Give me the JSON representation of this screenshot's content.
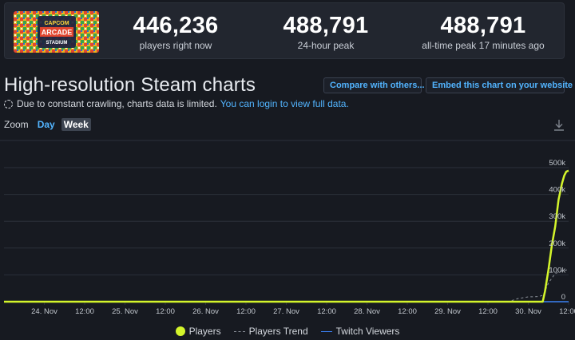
{
  "header": {
    "logo_text": "CAPCOM ARCADE STADIUM",
    "stats": [
      {
        "value": "446,236",
        "label": "players right now"
      },
      {
        "value": "488,791",
        "label": "24-hour peak"
      },
      {
        "value": "488,791",
        "label": "all-time peak 17 minutes ago"
      }
    ]
  },
  "title": "High-resolution Steam charts",
  "buttons": {
    "compare": "Compare with others...",
    "embed": "Embed this chart on your website"
  },
  "notice": {
    "text": "Due to constant crawling, charts data is limited.",
    "link": "You can login to view full data."
  },
  "zoom": {
    "label": "Zoom",
    "options": [
      "Day",
      "Week"
    ],
    "selected": "Week"
  },
  "colors": {
    "players": "#d4f52b",
    "trend": "#8a9099",
    "twitch": "#3b82f6",
    "grid": "#2b303a",
    "axis_text": "#c3c8cf"
  },
  "chart_data": {
    "type": "line",
    "x_ticks": [
      "24. Nov",
      "12:00",
      "25. Nov",
      "12:00",
      "26. Nov",
      "12:00",
      "27. Nov",
      "12:00",
      "28. Nov",
      "12:00",
      "29. Nov",
      "12:00",
      "30. Nov",
      "12:00"
    ],
    "y_ticks": [
      "0",
      "100k",
      "200k",
      "300k",
      "400k",
      "500k"
    ],
    "ylim": [
      0,
      500000
    ],
    "x_range_hours": [
      -12,
      156
    ],
    "series": [
      {
        "name": "Players",
        "points": [
          [
            -12,
            0
          ],
          [
            148.3,
            0
          ],
          [
            149,
            40000
          ],
          [
            150,
            120000
          ],
          [
            151,
            210000
          ],
          [
            152,
            280000
          ],
          [
            153,
            380000
          ],
          [
            154,
            440000
          ],
          [
            154.7,
            470000
          ],
          [
            155.3,
            485000
          ],
          [
            156,
            488791
          ]
        ]
      },
      {
        "name": "Players Trend",
        "points": [
          [
            -12,
            0
          ],
          [
            138,
            0
          ],
          [
            141,
            12000
          ],
          [
            144,
            18000
          ],
          [
            147,
            19000
          ],
          [
            148.5,
            24000
          ],
          [
            150,
            70000
          ],
          [
            152,
            105000
          ],
          [
            154,
            115000
          ],
          [
            156,
            120000
          ]
        ]
      },
      {
        "name": "Twitch Viewers",
        "points": [
          [
            -12,
            0
          ],
          [
            156,
            0
          ]
        ]
      }
    ]
  }
}
